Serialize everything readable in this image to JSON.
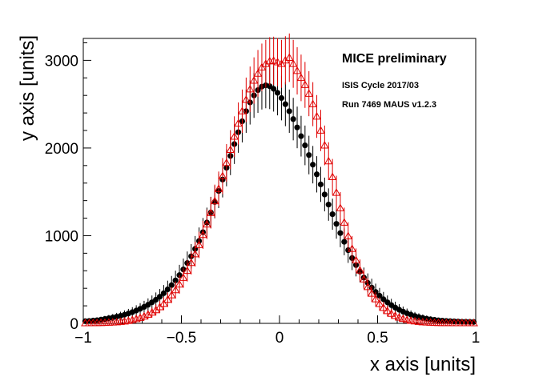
{
  "chart_data": {
    "type": "scatter",
    "xlabel": "x axis [units]",
    "ylabel": "y axis [units]",
    "xlim": [
      -1,
      1
    ],
    "ylim": [
      0,
      3250
    ],
    "x_ticks": [
      "−1",
      "−0.5",
      "0",
      "0.5",
      "1"
    ],
    "x_tick_values": [
      -1,
      -0.5,
      0,
      0.5,
      1
    ],
    "y_ticks": [
      "0",
      "1000",
      "2000",
      "3000"
    ],
    "y_tick_values": [
      0,
      1000,
      2000,
      3000
    ],
    "grid": false,
    "annotations": [
      "MICE preliminary",
      "ISIS Cycle 2017/03",
      "Run 7469 MAUS v1.2.3"
    ],
    "series": [
      {
        "marker": "filled-circle",
        "color": "#000000",
        "x": [
          -0.99,
          -0.97,
          -0.95,
          -0.93,
          -0.91,
          -0.89,
          -0.87,
          -0.85,
          -0.83,
          -0.81,
          -0.79,
          -0.77,
          -0.75,
          -0.73,
          -0.71,
          -0.69,
          -0.67,
          -0.65,
          -0.63,
          -0.61,
          -0.59,
          -0.57,
          -0.55,
          -0.53,
          -0.51,
          -0.49,
          -0.47,
          -0.45,
          -0.43,
          -0.41,
          -0.39,
          -0.37,
          -0.35,
          -0.33,
          -0.31,
          -0.29,
          -0.27,
          -0.25,
          -0.23,
          -0.21,
          -0.19,
          -0.17,
          -0.15,
          -0.13,
          -0.11,
          -0.09,
          -0.07,
          -0.05,
          -0.03,
          -0.01,
          0.01,
          0.03,
          0.05,
          0.07,
          0.09,
          0.11,
          0.13,
          0.15,
          0.17,
          0.19,
          0.21,
          0.23,
          0.25,
          0.27,
          0.29,
          0.31,
          0.33,
          0.35,
          0.37,
          0.39,
          0.41,
          0.43,
          0.45,
          0.47,
          0.49,
          0.51,
          0.53,
          0.55,
          0.57,
          0.59,
          0.61,
          0.63,
          0.65,
          0.67,
          0.69,
          0.71,
          0.73,
          0.75,
          0.77,
          0.79,
          0.81,
          0.83,
          0.85,
          0.87,
          0.89,
          0.91,
          0.93,
          0.95,
          0.97,
          0.99
        ],
        "y": [
          25,
          28,
          32,
          36,
          42,
          50,
          58,
          66,
          76,
          86,
          98,
          112,
          128,
          146,
          166,
          188,
          212,
          240,
          270,
          304,
          344,
          388,
          436,
          490,
          550,
          615,
          688,
          765,
          850,
          940,
          1040,
          1150,
          1265,
          1385,
          1510,
          1640,
          1775,
          1910,
          2045,
          2180,
          2305,
          2420,
          2520,
          2600,
          2660,
          2700,
          2715,
          2705,
          2675,
          2630,
          2570,
          2500,
          2420,
          2330,
          2235,
          2135,
          2030,
          1920,
          1810,
          1700,
          1585,
          1470,
          1355,
          1245,
          1135,
          1030,
          930,
          835,
          745,
          665,
          590,
          522,
          462,
          408,
          358,
          315,
          275,
          240,
          208,
          180,
          156,
          134,
          115,
          98,
          84,
          72,
          62,
          53,
          46,
          40,
          35,
          31,
          28,
          25,
          23,
          21,
          19,
          18,
          17,
          16
        ]
      },
      {
        "marker": "open-triangle",
        "color": "#e00000",
        "x": [
          -0.99,
          -0.97,
          -0.95,
          -0.93,
          -0.91,
          -0.89,
          -0.87,
          -0.85,
          -0.83,
          -0.81,
          -0.79,
          -0.77,
          -0.75,
          -0.73,
          -0.71,
          -0.69,
          -0.67,
          -0.65,
          -0.63,
          -0.61,
          -0.59,
          -0.57,
          -0.55,
          -0.53,
          -0.51,
          -0.49,
          -0.47,
          -0.45,
          -0.43,
          -0.41,
          -0.39,
          -0.37,
          -0.35,
          -0.33,
          -0.31,
          -0.29,
          -0.27,
          -0.25,
          -0.23,
          -0.21,
          -0.19,
          -0.17,
          -0.15,
          -0.13,
          -0.11,
          -0.09,
          -0.07,
          -0.05,
          -0.03,
          -0.01,
          0.01,
          0.03,
          0.05,
          0.07,
          0.09,
          0.11,
          0.13,
          0.15,
          0.17,
          0.19,
          0.21,
          0.23,
          0.25,
          0.27,
          0.29,
          0.31,
          0.33,
          0.35,
          0.37,
          0.39,
          0.41,
          0.43,
          0.45,
          0.47,
          0.49,
          0.51,
          0.53,
          0.55,
          0.57,
          0.59,
          0.61,
          0.63,
          0.65,
          0.67,
          0.69,
          0.71,
          0.73,
          0.75,
          0.77,
          0.79,
          0.81,
          0.83,
          0.85,
          0.87,
          0.89,
          0.91,
          0.93,
          0.95,
          0.97,
          0.99
        ],
        "y": [
          3,
          3,
          4,
          5,
          6,
          7,
          9,
          11,
          14,
          18,
          23,
          30,
          39,
          50,
          64,
          80,
          100,
          124,
          152,
          186,
          225,
          270,
          322,
          380,
          445,
          520,
          600,
          690,
          790,
          895,
          1010,
          1130,
          1260,
          1395,
          1535,
          1680,
          1830,
          1980,
          2130,
          2280,
          2420,
          2550,
          2670,
          2770,
          2850,
          2920,
          2960,
          2990,
          2995,
          2980,
          2960,
          3000,
          3030,
          2960,
          2880,
          2800,
          2720,
          2620,
          2500,
          2360,
          2200,
          2030,
          1850,
          1670,
          1490,
          1315,
          1150,
          995,
          850,
          720,
          605,
          503,
          415,
          340,
          276,
          222,
          178,
          141,
          111,
          87,
          67,
          52,
          40,
          31,
          24,
          18,
          14,
          11,
          9,
          7,
          6,
          5,
          4,
          4,
          3,
          3,
          3,
          3,
          3,
          3
        ]
      }
    ]
  }
}
